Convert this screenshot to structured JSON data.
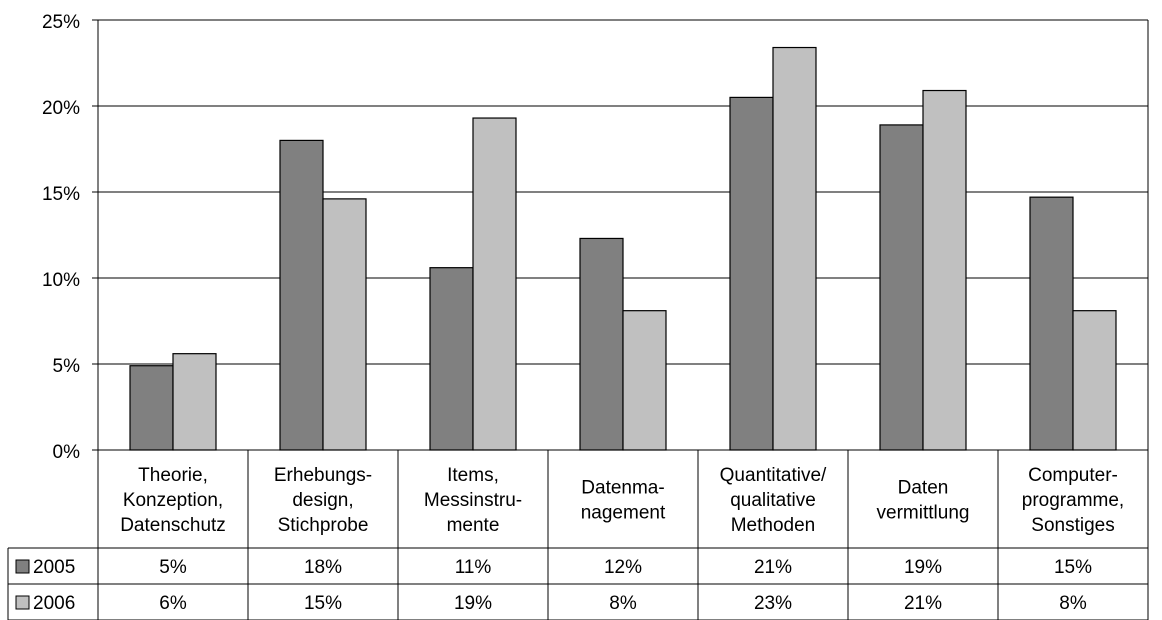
{
  "chart_data": {
    "type": "bar",
    "title": "",
    "xlabel": "",
    "ylabel": "",
    "ylim": [
      0,
      25
    ],
    "y_ticks": [
      0,
      5,
      10,
      15,
      20,
      25
    ],
    "y_tick_labels": [
      "0%",
      "5%",
      "10%",
      "15%",
      "20%",
      "25%"
    ],
    "y_unit": "%",
    "grid": true,
    "legend": "data-table",
    "categories": [
      [
        "Theorie,",
        "Konzeption,",
        "Datenschutz"
      ],
      [
        "Erhebungs-",
        "design,",
        "Stichprobe"
      ],
      [
        "Items,",
        "Messinstru-",
        "mente"
      ],
      [
        "Datenma-",
        "nagement"
      ],
      [
        "Quantitative/",
        "qualitative",
        "Methoden"
      ],
      [
        "Daten",
        "vermittlung"
      ],
      [
        "Computer-",
        "programme,",
        "Sonstiges"
      ]
    ],
    "series": [
      {
        "name": "2005",
        "color": "#808080",
        "values": [
          4.9,
          18.0,
          10.6,
          12.3,
          20.5,
          18.9,
          14.7
        ],
        "labels": [
          "5%",
          "18%",
          "11%",
          "12%",
          "21%",
          "19%",
          "15%"
        ]
      },
      {
        "name": "2006",
        "color": "#c0c0c0",
        "values": [
          5.6,
          14.6,
          19.3,
          8.1,
          23.4,
          20.9,
          8.1
        ],
        "labels": [
          "6%",
          "15%",
          "19%",
          "8%",
          "23%",
          "21%",
          "8%"
        ]
      }
    ]
  }
}
